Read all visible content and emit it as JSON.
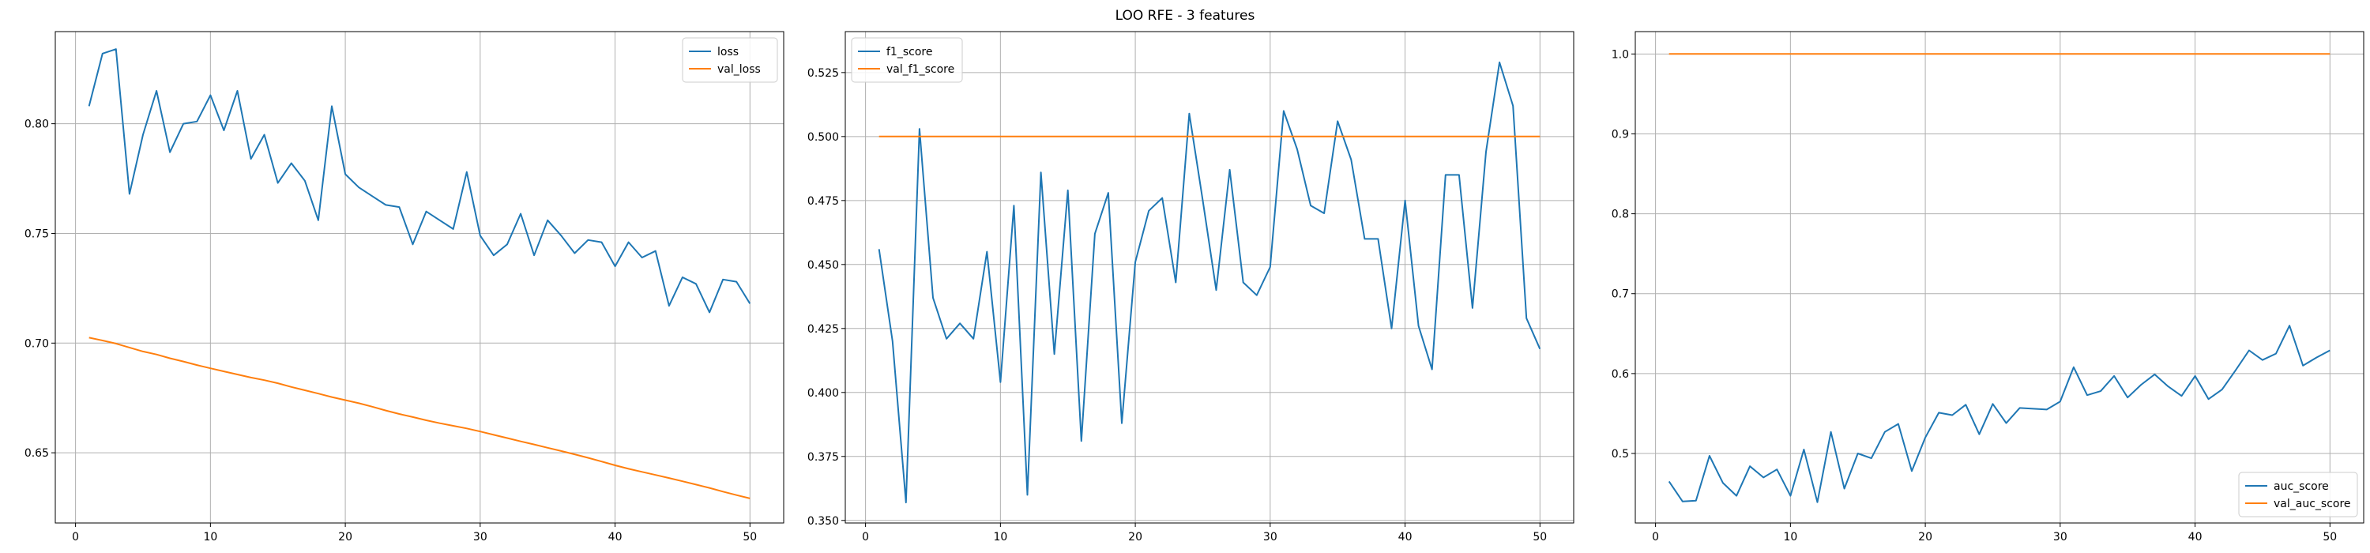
{
  "figure": {
    "title": "LOO RFE - 3 features"
  },
  "colors": {
    "blue": "#1f77b4",
    "orange": "#ff7f0e",
    "grid": "#b0b0b0",
    "axis": "#000000"
  },
  "chart_data": [
    {
      "type": "line",
      "grid": true,
      "legend_position": "top-right",
      "xlim": [
        -1.5,
        52.5
      ],
      "ylim": [
        0.618,
        0.842
      ],
      "xticks": [
        0,
        10,
        20,
        30,
        40,
        50
      ],
      "xtick_labels": [
        "0",
        "10",
        "20",
        "30",
        "40",
        "50"
      ],
      "yticks": [
        0.65,
        0.7,
        0.75,
        0.8
      ],
      "ytick_labels": [
        "0.65",
        "0.70",
        "0.75",
        "0.80"
      ],
      "x": [
        1,
        2,
        3,
        4,
        5,
        6,
        7,
        8,
        9,
        10,
        11,
        12,
        13,
        14,
        15,
        16,
        17,
        18,
        19,
        20,
        21,
        22,
        23,
        24,
        25,
        26,
        27,
        28,
        29,
        30,
        31,
        32,
        33,
        34,
        35,
        36,
        37,
        38,
        39,
        40,
        41,
        42,
        43,
        44,
        45,
        46,
        47,
        48,
        49,
        50
      ],
      "series": [
        {
          "name": "loss",
          "color": "#1f77b4",
          "values": [
            0.808,
            0.832,
            0.834,
            0.768,
            0.795,
            0.815,
            0.787,
            0.8,
            0.801,
            0.813,
            0.797,
            0.815,
            0.784,
            0.795,
            0.773,
            0.782,
            0.774,
            0.756,
            0.808,
            0.777,
            0.771,
            0.767,
            0.763,
            0.762,
            0.745,
            0.76,
            0.756,
            0.752,
            0.778,
            0.749,
            0.74,
            0.745,
            0.759,
            0.74,
            0.756,
            0.749,
            0.741,
            0.747,
            0.746,
            0.735,
            0.746,
            0.739,
            0.742,
            0.717,
            0.73,
            0.727,
            0.714,
            0.729,
            0.728,
            0.718
          ]
        },
        {
          "name": "val_loss",
          "color": "#ff7f0e",
          "values": [
            0.7025,
            0.7012,
            0.6998,
            0.698,
            0.6962,
            0.6948,
            0.6931,
            0.6916,
            0.69,
            0.6885,
            0.6871,
            0.6857,
            0.6843,
            0.6831,
            0.6817,
            0.68,
            0.6785,
            0.677,
            0.6754,
            0.674,
            0.6726,
            0.671,
            0.6693,
            0.6677,
            0.6663,
            0.6648,
            0.6635,
            0.6623,
            0.6611,
            0.6597,
            0.6582,
            0.6567,
            0.6552,
            0.6538,
            0.6523,
            0.6508,
            0.6493,
            0.6477,
            0.646,
            0.6443,
            0.6427,
            0.6413,
            0.6399,
            0.6385,
            0.637,
            0.6355,
            0.634,
            0.6323,
            0.6307,
            0.6292
          ]
        }
      ]
    },
    {
      "type": "line",
      "grid": true,
      "legend_position": "top-left",
      "xlim": [
        -1.5,
        52.5
      ],
      "ylim": [
        0.349,
        0.541
      ],
      "xticks": [
        0,
        10,
        20,
        30,
        40,
        50
      ],
      "xtick_labels": [
        "0",
        "10",
        "20",
        "30",
        "40",
        "50"
      ],
      "yticks": [
        0.35,
        0.375,
        0.4,
        0.425,
        0.45,
        0.475,
        0.5,
        0.525
      ],
      "ytick_labels": [
        "0.350",
        "0.375",
        "0.400",
        "0.425",
        "0.450",
        "0.475",
        "0.500",
        "0.525"
      ],
      "x": [
        1,
        2,
        3,
        4,
        5,
        6,
        7,
        8,
        9,
        10,
        11,
        12,
        13,
        14,
        15,
        16,
        17,
        18,
        19,
        20,
        21,
        22,
        23,
        24,
        25,
        26,
        27,
        28,
        29,
        30,
        31,
        32,
        33,
        34,
        35,
        36,
        37,
        38,
        39,
        40,
        41,
        42,
        43,
        44,
        45,
        46,
        47,
        48,
        49,
        50
      ],
      "series": [
        {
          "name": "f1_score",
          "color": "#1f77b4",
          "values": [
            0.456,
            0.42,
            0.357,
            0.503,
            0.437,
            0.421,
            0.427,
            0.421,
            0.455,
            0.404,
            0.473,
            0.36,
            0.486,
            0.415,
            0.479,
            0.381,
            0.462,
            0.478,
            0.388,
            0.451,
            0.471,
            0.476,
            0.443,
            0.509,
            0.475,
            0.44,
            0.487,
            0.443,
            0.438,
            0.449,
            0.51,
            0.495,
            0.473,
            0.47,
            0.506,
            0.491,
            0.46,
            0.46,
            0.425,
            0.475,
            0.426,
            0.409,
            0.485,
            0.485,
            0.433,
            0.494,
            0.529,
            0.512,
            0.429,
            0.417
          ]
        },
        {
          "name": "val_f1_score",
          "color": "#ff7f0e",
          "values": [
            0.5,
            0.5,
            0.5,
            0.5,
            0.5,
            0.5,
            0.5,
            0.5,
            0.5,
            0.5,
            0.5,
            0.5,
            0.5,
            0.5,
            0.5,
            0.5,
            0.5,
            0.5,
            0.5,
            0.5,
            0.5,
            0.5,
            0.5,
            0.5,
            0.5,
            0.5,
            0.5,
            0.5,
            0.5,
            0.5,
            0.5,
            0.5,
            0.5,
            0.5,
            0.5,
            0.5,
            0.5,
            0.5,
            0.5,
            0.5,
            0.5,
            0.5,
            0.5,
            0.5,
            0.5,
            0.5,
            0.5,
            0.5,
            0.5,
            0.5
          ]
        }
      ]
    },
    {
      "type": "line",
      "grid": true,
      "legend_position": "bottom-right",
      "xlim": [
        -1.5,
        52.5
      ],
      "ylim": [
        0.413,
        1.028
      ],
      "xticks": [
        0,
        10,
        20,
        30,
        40,
        50
      ],
      "xtick_labels": [
        "0",
        "10",
        "20",
        "30",
        "40",
        "50"
      ],
      "yticks": [
        0.5,
        0.6,
        0.7,
        0.8,
        0.9,
        1.0
      ],
      "ytick_labels": [
        "0.5",
        "0.6",
        "0.7",
        "0.8",
        "0.9",
        "1.0"
      ],
      "x": [
        1,
        2,
        3,
        4,
        5,
        6,
        7,
        8,
        9,
        10,
        11,
        12,
        13,
        14,
        15,
        16,
        17,
        18,
        19,
        20,
        21,
        22,
        23,
        24,
        25,
        26,
        27,
        28,
        29,
        30,
        31,
        32,
        33,
        34,
        35,
        36,
        37,
        38,
        39,
        40,
        41,
        42,
        43,
        44,
        45,
        46,
        47,
        48,
        49,
        50
      ],
      "series": [
        {
          "name": "auc_score",
          "color": "#1f77b4",
          "values": [
            0.465,
            0.44,
            0.441,
            0.497,
            0.463,
            0.447,
            0.484,
            0.47,
            0.48,
            0.447,
            0.505,
            0.439,
            0.527,
            0.456,
            0.5,
            0.494,
            0.527,
            0.537,
            0.478,
            0.52,
            0.551,
            0.548,
            0.561,
            0.524,
            0.562,
            0.538,
            0.557,
            0.556,
            0.555,
            0.565,
            0.608,
            0.573,
            0.578,
            0.597,
            0.57,
            0.586,
            0.599,
            0.584,
            0.572,
            0.597,
            0.568,
            0.58,
            0.604,
            0.629,
            0.617,
            0.625,
            0.66,
            0.61,
            0.62,
            0.629
          ]
        },
        {
          "name": "val_auc_score",
          "color": "#ff7f0e",
          "values": [
            1.0,
            1.0,
            1.0,
            1.0,
            1.0,
            1.0,
            1.0,
            1.0,
            1.0,
            1.0,
            1.0,
            1.0,
            1.0,
            1.0,
            1.0,
            1.0,
            1.0,
            1.0,
            1.0,
            1.0,
            1.0,
            1.0,
            1.0,
            1.0,
            1.0,
            1.0,
            1.0,
            1.0,
            1.0,
            1.0,
            1.0,
            1.0,
            1.0,
            1.0,
            1.0,
            1.0,
            1.0,
            1.0,
            1.0,
            1.0,
            1.0,
            1.0,
            1.0,
            1.0,
            1.0,
            1.0,
            1.0,
            1.0,
            1.0,
            1.0
          ]
        }
      ]
    }
  ]
}
